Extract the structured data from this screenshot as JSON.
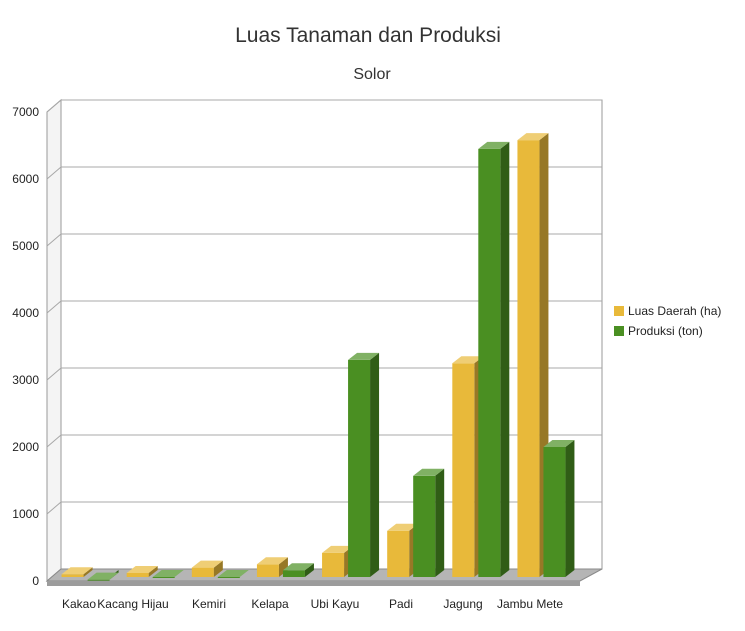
{
  "chart_data": {
    "type": "bar",
    "title": "Luas Tanaman dan Produksi",
    "subtitle": "Solor",
    "xlabel": "",
    "ylabel": "",
    "categories": [
      "Kakao",
      "Kacang Hijau",
      "Kemiri",
      "Kelapa",
      "Ubi Kayu",
      "Padi",
      "Jagung",
      "Jambu Mete"
    ],
    "series": [
      {
        "name": "Luas Daerah (ha)",
        "color": "#e8b93a",
        "values": [
          100,
          120,
          200,
          250,
          420,
          750,
          3250,
          6580
        ]
      },
      {
        "name": "Produksi (ton)",
        "color": "#4a8f22",
        "values": [
          20,
          60,
          60,
          160,
          3300,
          1570,
          6450,
          2000
        ]
      }
    ],
    "ylim": [
      0,
      7000
    ],
    "yticks": [
      0,
      1000,
      2000,
      3000,
      4000,
      5000,
      6000,
      7000
    ],
    "grid": true,
    "legend_position": "right",
    "style": "3d"
  }
}
